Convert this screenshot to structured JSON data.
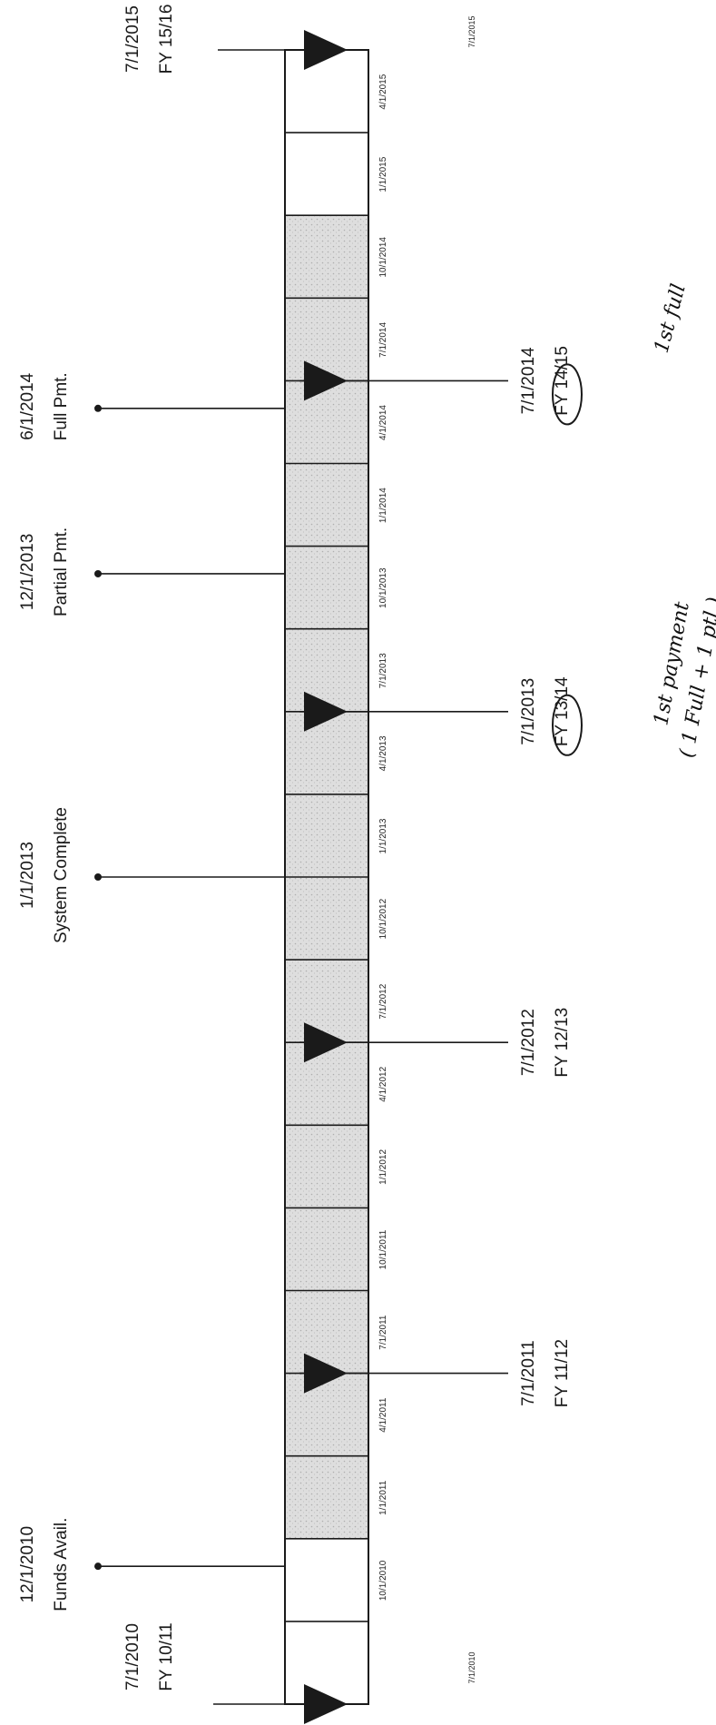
{
  "timeline": {
    "title": "",
    "start_label": "7/1/2010",
    "end_label": "7/1/2015",
    "quarter_ticks": [
      "10/1/2010",
      "1/1/2011",
      "4/1/2011",
      "7/1/2011",
      "10/1/2011",
      "1/1/2012",
      "4/1/2012",
      "7/1/2012",
      "10/1/2012",
      "1/1/2013",
      "4/1/2013",
      "7/1/2013",
      "10/1/2013",
      "1/1/2014",
      "4/1/2014",
      "7/1/2014",
      "10/1/2014",
      "1/1/2015",
      "4/1/2015"
    ],
    "shaded_range": [
      "1/1/2011",
      "1/1/2015"
    ]
  },
  "milestones": [
    {
      "date": "12/1/2010",
      "label": "Funds Avail."
    },
    {
      "date": "1/1/2013",
      "label": "System Complete"
    },
    {
      "date": "12/1/2013",
      "label": "Partial Pmt."
    },
    {
      "date": "6/1/2014",
      "label": "Full Pmt."
    }
  ],
  "fiscal_years": [
    {
      "date": "7/1/2010",
      "label": "FY 10/11"
    },
    {
      "date": "7/1/2011",
      "label": "FY 11/12"
    },
    {
      "date": "7/1/2012",
      "label": "FY 12/13"
    },
    {
      "date": "7/1/2013",
      "label": "FY 13/14",
      "circled": true
    },
    {
      "date": "7/1/2014",
      "label": "FY 14/15",
      "circled": true
    },
    {
      "date": "7/1/2015",
      "label": "FY 15/16"
    }
  ],
  "annotations": [
    {
      "text": "1st payment",
      "line2": "( 1 Full + 1 ptl )"
    },
    {
      "text": "1st full"
    }
  ],
  "colors": {
    "ink": "#1a1a1a",
    "shade": "#c8c8c8"
  }
}
